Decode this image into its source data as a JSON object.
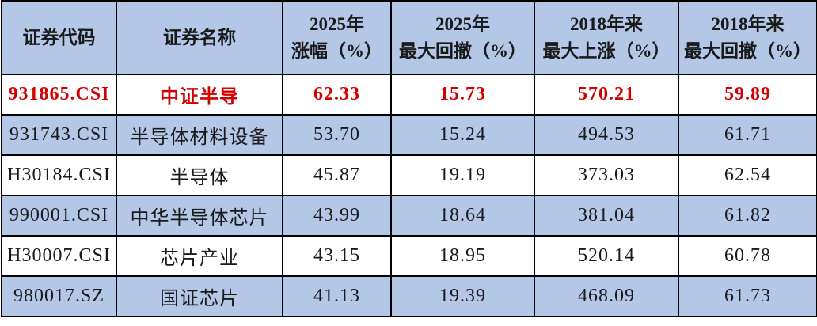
{
  "colors": {
    "header_background": "#b4c7e7",
    "band_background": "#b4c7e7",
    "highlight_text": "#d40000",
    "body_text": "#1a1a1a",
    "gridline": "#000000"
  },
  "chart_data": {
    "type": "table",
    "columns": [
      "证券代码",
      "证券名称",
      "2025年\n涨幅（%）",
      "2025年\n最大回撤（%）",
      "2018年来\n最大上涨（%）",
      "2018年来\n最大回撤（%）"
    ],
    "highlight_row_index": 0,
    "rows": [
      [
        "931865.CSI",
        "中证半导",
        "62.33",
        "15.73",
        "570.21",
        "59.89"
      ],
      [
        "931743.CSI",
        "半导体材料设备",
        "53.70",
        "15.24",
        "494.53",
        "61.71"
      ],
      [
        "H30184.CSI",
        "半导体",
        "45.87",
        "19.19",
        "373.03",
        "62.54"
      ],
      [
        "990001.CSI",
        "中华半导体芯片",
        "43.99",
        "18.64",
        "381.04",
        "61.82"
      ],
      [
        "H30007.CSI",
        "芯片产业",
        "43.15",
        "18.95",
        "520.14",
        "60.78"
      ],
      [
        "980017.SZ",
        "国证芯片",
        "41.13",
        "19.39",
        "468.09",
        "61.73"
      ]
    ]
  }
}
